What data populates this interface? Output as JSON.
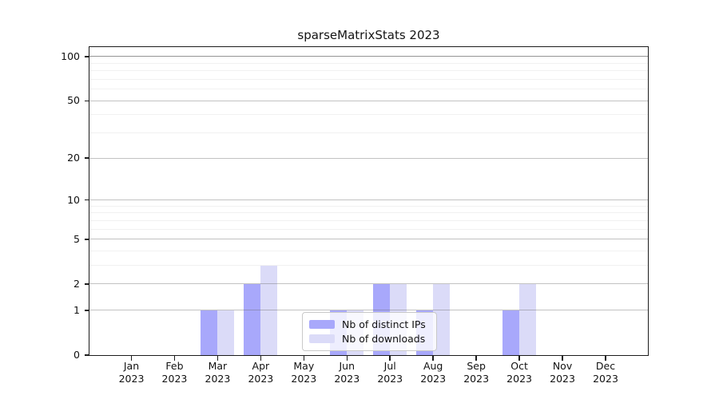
{
  "chart_data": {
    "type": "bar",
    "title": "sparseMatrixStats 2023",
    "categories": [
      "Jan 2023",
      "Feb 2023",
      "Mar 2023",
      "Apr 2023",
      "May 2023",
      "Jun 2023",
      "Jul 2023",
      "Aug 2023",
      "Sep 2023",
      "Oct 2023",
      "Nov 2023",
      "Dec 2023"
    ],
    "series": [
      {
        "name": "Nb of distinct IPs",
        "color": "#a8a8fb",
        "values": [
          0,
          0,
          1,
          2,
          0,
          1,
          2,
          1,
          0,
          1,
          0,
          0
        ]
      },
      {
        "name": "Nb of downloads",
        "color": "#dbdbf8",
        "values": [
          0,
          0,
          1,
          3,
          0,
          1,
          2,
          2,
          0,
          2,
          0,
          0
        ]
      }
    ],
    "y_axis": {
      "scale": "log1p",
      "tick_values": [
        0,
        1,
        2,
        5,
        10,
        20,
        50,
        100
      ],
      "tick_labels": [
        "0",
        "1",
        "2",
        "5",
        "10",
        "20",
        "50",
        "100"
      ],
      "minor_gridline_values": [
        3,
        4,
        6,
        7,
        8,
        9,
        30,
        40,
        60,
        70,
        80,
        90
      ],
      "max": 116
    },
    "x_axis": {
      "tick_label_year_on_second_line": true
    },
    "legend": {
      "location": "inside-bottom-center"
    },
    "grid": "on",
    "background_color": "#ffffff"
  }
}
